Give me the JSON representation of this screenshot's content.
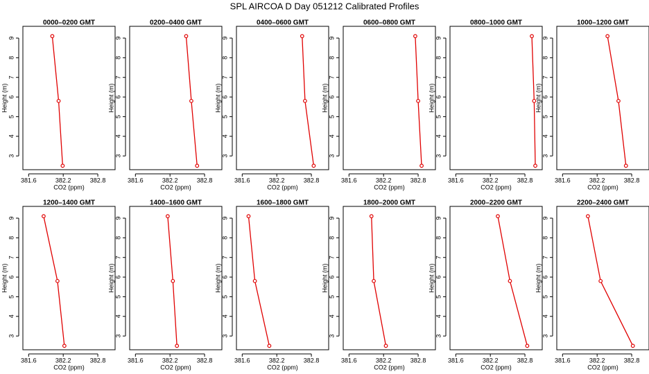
{
  "title": "SPL AIRCOA D  Day 051212  Calibrated Profiles",
  "chart_data": [
    {
      "type": "line",
      "title": "0000–0200 GMT",
      "x_label": "CO2 (ppm)",
      "y_label": "Height (m)",
      "color": "#e00000",
      "x": [
        382.01,
        382.12,
        382.19
      ],
      "values": [
        9.1,
        5.8,
        2.5
      ],
      "xlim": [
        381.5,
        383.1
      ],
      "ylim": [
        2.3,
        9.6
      ],
      "xticks": [
        381.6,
        382.2,
        382.8
      ],
      "yticks": [
        3,
        4,
        5,
        6,
        7,
        8,
        9
      ]
    },
    {
      "type": "line",
      "title": "0200–0400 GMT",
      "x_label": "CO2 (ppm)",
      "y_label": "Height (m)",
      "color": "#e00000",
      "x": [
        382.48,
        382.57,
        382.67
      ],
      "values": [
        9.1,
        5.8,
        2.5
      ],
      "xlim": [
        381.5,
        383.1
      ],
      "ylim": [
        2.3,
        9.6
      ],
      "xticks": [
        381.6,
        382.2,
        382.8
      ],
      "yticks": [
        3,
        4,
        5,
        6,
        7,
        8,
        9
      ]
    },
    {
      "type": "line",
      "title": "0400–0600 GMT",
      "x_label": "CO2 (ppm)",
      "y_label": "Height (m)",
      "color": "#e00000",
      "x": [
        382.64,
        382.69,
        382.84
      ],
      "values": [
        9.1,
        5.8,
        2.5
      ],
      "xlim": [
        381.5,
        383.1
      ],
      "ylim": [
        2.3,
        9.6
      ],
      "xticks": [
        381.6,
        382.2,
        382.8
      ],
      "yticks": [
        3,
        4,
        5,
        6,
        7,
        8,
        9
      ]
    },
    {
      "type": "line",
      "title": "0600–0800 GMT",
      "x_label": "CO2 (ppm)",
      "y_label": "Height (m)",
      "color": "#e00000",
      "x": [
        382.75,
        382.8,
        382.86
      ],
      "values": [
        9.1,
        5.8,
        2.5
      ],
      "xlim": [
        381.5,
        383.1
      ],
      "ylim": [
        2.3,
        9.6
      ],
      "xticks": [
        381.6,
        382.2,
        382.8
      ],
      "yticks": [
        3,
        4,
        5,
        6,
        7,
        8,
        9
      ]
    },
    {
      "type": "line",
      "title": "0800–1000 GMT",
      "x_label": "CO2 (ppm)",
      "y_label": "Height (m)",
      "color": "#e00000",
      "x": [
        382.92,
        382.96,
        382.98
      ],
      "values": [
        9.1,
        5.8,
        2.5
      ],
      "xlim": [
        381.5,
        383.1
      ],
      "ylim": [
        2.3,
        9.6
      ],
      "xticks": [
        381.6,
        382.2,
        382.8
      ],
      "yticks": [
        3,
        4,
        5,
        6,
        7,
        8,
        9
      ]
    },
    {
      "type": "line",
      "title": "1000–1200 GMT",
      "x_label": "CO2 (ppm)",
      "y_label": "Height (m)",
      "color": "#e00000",
      "x": [
        382.38,
        382.57,
        382.7
      ],
      "values": [
        9.1,
        5.8,
        2.5
      ],
      "xlim": [
        381.5,
        383.1
      ],
      "ylim": [
        2.3,
        9.6
      ],
      "xticks": [
        381.6,
        382.2,
        382.8
      ],
      "yticks": [
        3,
        4,
        5,
        6,
        7,
        8,
        9
      ]
    },
    {
      "type": "line",
      "title": "1200–1400 GMT",
      "x_label": "CO2 (ppm)",
      "y_label": "Height (m)",
      "color": "#e00000",
      "x": [
        381.86,
        382.1,
        382.22
      ],
      "values": [
        9.1,
        5.8,
        2.5
      ],
      "xlim": [
        381.5,
        383.1
      ],
      "ylim": [
        2.3,
        9.6
      ],
      "xticks": [
        381.6,
        382.2,
        382.8
      ],
      "yticks": [
        3,
        4,
        5,
        6,
        7,
        8,
        9
      ]
    },
    {
      "type": "line",
      "title": "1400–1600 GMT",
      "x_label": "CO2 (ppm)",
      "y_label": "Height (m)",
      "color": "#e00000",
      "x": [
        382.16,
        382.25,
        382.32
      ],
      "values": [
        9.1,
        5.8,
        2.5
      ],
      "xlim": [
        381.5,
        383.1
      ],
      "ylim": [
        2.3,
        9.6
      ],
      "xticks": [
        381.6,
        382.2,
        382.8
      ],
      "yticks": [
        3,
        4,
        5,
        6,
        7,
        8,
        9
      ]
    },
    {
      "type": "line",
      "title": "1600–1800 GMT",
      "x_label": "CO2 (ppm)",
      "y_label": "Height (m)",
      "color": "#e00000",
      "x": [
        381.71,
        381.82,
        382.07
      ],
      "values": [
        9.1,
        5.8,
        2.5
      ],
      "xlim": [
        381.5,
        383.1
      ],
      "ylim": [
        2.3,
        9.6
      ],
      "xticks": [
        381.6,
        382.2,
        382.8
      ],
      "yticks": [
        3,
        4,
        5,
        6,
        7,
        8,
        9
      ]
    },
    {
      "type": "line",
      "title": "1800–2000 GMT",
      "x_label": "CO2 (ppm)",
      "y_label": "Height (m)",
      "color": "#e00000",
      "x": [
        381.99,
        382.03,
        382.24
      ],
      "values": [
        9.1,
        5.8,
        2.5
      ],
      "xlim": [
        381.5,
        383.1
      ],
      "ylim": [
        2.3,
        9.6
      ],
      "xticks": [
        381.6,
        382.2,
        382.8
      ],
      "yticks": [
        3,
        4,
        5,
        6,
        7,
        8,
        9
      ]
    },
    {
      "type": "line",
      "title": "2000–2200 GMT",
      "x_label": "CO2 (ppm)",
      "y_label": "Height (m)",
      "color": "#e00000",
      "x": [
        382.33,
        382.54,
        382.84
      ],
      "values": [
        9.1,
        5.8,
        2.5
      ],
      "xlim": [
        381.5,
        383.1
      ],
      "ylim": [
        2.3,
        9.6
      ],
      "xticks": [
        381.6,
        382.2,
        382.8
      ],
      "yticks": [
        3,
        4,
        5,
        6,
        7,
        8,
        9
      ]
    },
    {
      "type": "line",
      "title": "2200–2400 GMT",
      "x_label": "CO2 (ppm)",
      "y_label": "Height (m)",
      "color": "#e00000",
      "x": [
        382.04,
        382.26,
        382.82
      ],
      "values": [
        9.1,
        5.8,
        2.5
      ],
      "xlim": [
        381.5,
        383.1
      ],
      "ylim": [
        2.3,
        9.6
      ],
      "xticks": [
        381.6,
        382.2,
        382.8
      ],
      "yticks": [
        3,
        4,
        5,
        6,
        7,
        8,
        9
      ]
    }
  ]
}
